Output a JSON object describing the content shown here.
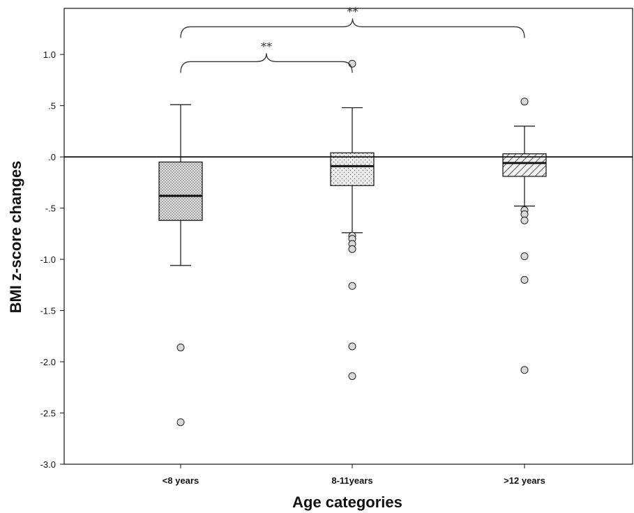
{
  "chart_data": {
    "type": "boxplot",
    "xlabel": "Age categories",
    "ylabel": "BMI z-score changes",
    "ylim": [
      -3.0,
      1.45
    ],
    "yticks": [
      -3.0,
      -2.5,
      -2.0,
      -1.5,
      -1.0,
      -0.5,
      0.0,
      0.5,
      1.0
    ],
    "ytick_labels": [
      "-3.0",
      "-2.5",
      "-2.0",
      "-1.5",
      "-1.0",
      "-.5",
      ".0",
      ".5",
      "1.0"
    ],
    "reference_line": 0.0,
    "categories": [
      "<8 years",
      "8-11years",
      ">12 years"
    ],
    "boxes": [
      {
        "category": "<8 years",
        "whisker_low": -1.06,
        "q1": -0.62,
        "median": -0.38,
        "q3": -0.05,
        "whisker_high": 0.51,
        "outliers": [
          -1.86,
          -2.59
        ],
        "pattern": "dots-dense"
      },
      {
        "category": "8-11years",
        "whisker_low": -0.74,
        "q1": -0.28,
        "median": -0.09,
        "q3": 0.04,
        "whisker_high": 0.48,
        "outliers": [
          0.91,
          -0.77,
          -0.8,
          -0.85,
          -0.9,
          -1.26,
          -1.85,
          -2.14
        ],
        "pattern": "dots-sparse"
      },
      {
        "category": ">12 years",
        "whisker_low": -0.48,
        "q1": -0.19,
        "median": -0.06,
        "q3": 0.03,
        "whisker_high": 0.3,
        "outliers": [
          0.54,
          -0.52,
          -0.56,
          -0.62,
          -0.97,
          -1.2,
          -2.08
        ],
        "pattern": "diagonal-hatch"
      }
    ],
    "significance": [
      {
        "from": "<8 years",
        "to": "8-11years",
        "label": "**",
        "y": 0.93
      },
      {
        "from": "<8 years",
        "to": ">12 years",
        "label": "**",
        "y": 1.27
      }
    ],
    "colors": {
      "box_fill": "#e6e6e6",
      "line": "#111111",
      "outlier_fill": "#d9d9d9",
      "bracket": "#333333"
    }
  }
}
